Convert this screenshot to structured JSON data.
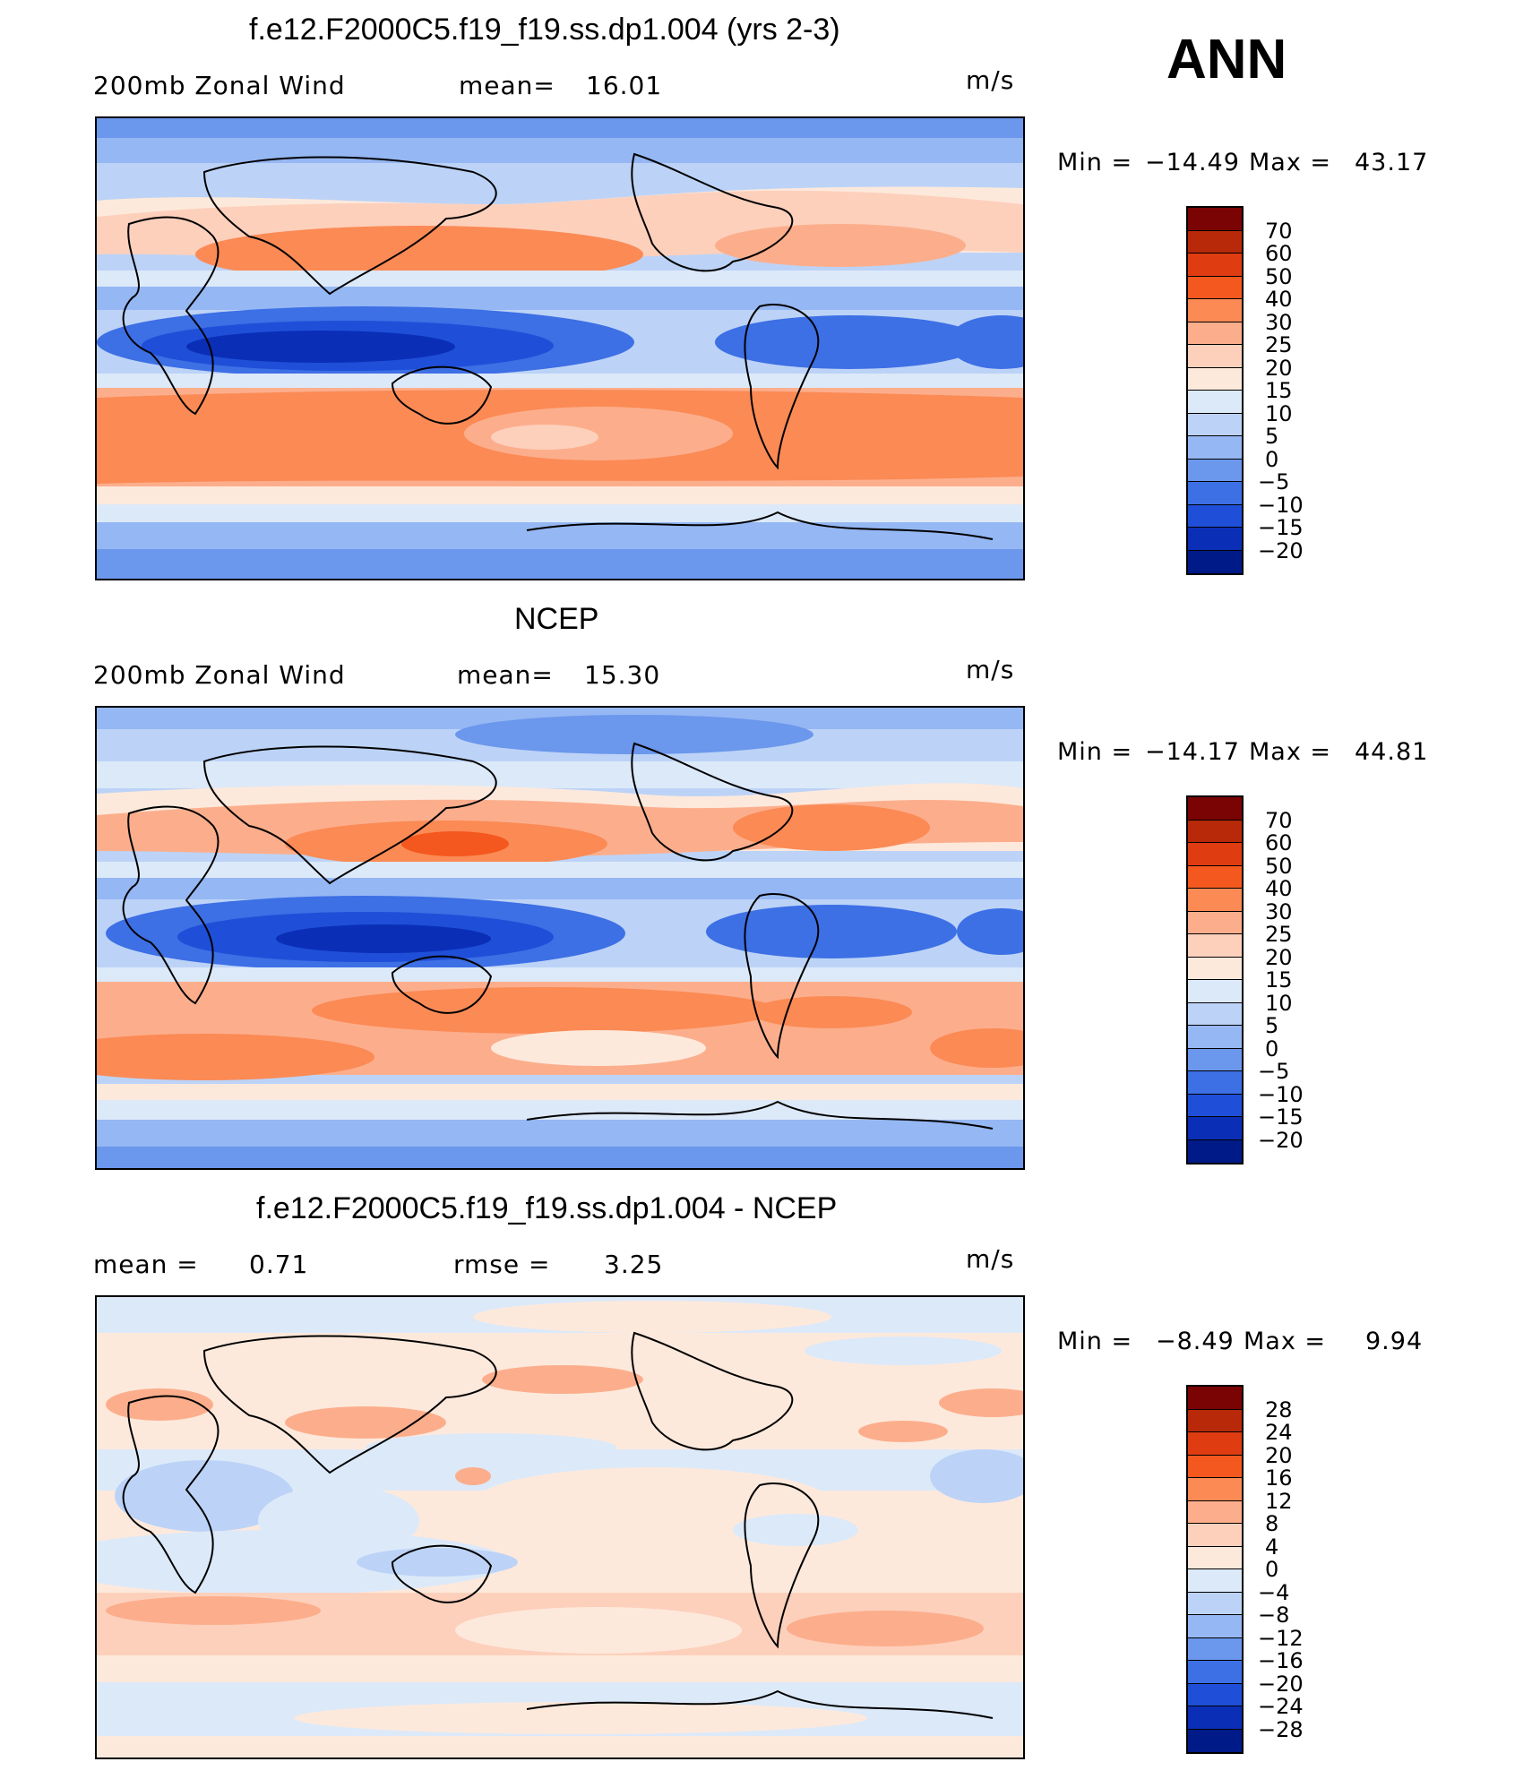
{
  "header": {
    "season": "ANN"
  },
  "chart_data": [
    {
      "type": "heatmap",
      "title": "f.e12.F2000C5.f19_f19.ss.dp1.004 (yrs 2-3)",
      "variable": "200mb Zonal Wind",
      "stat_label": "mean=",
      "stat_value": "16.01",
      "units": "m/s",
      "min_label": "Min =",
      "min_value": "−14.49",
      "max_label": "Max =",
      "max_value": "43.17",
      "colorbar": {
        "levels": [
          "70",
          "60",
          "50",
          "40",
          "30",
          "25",
          "20",
          "15",
          "10",
          "5",
          "0",
          "−5",
          "−10",
          "−15",
          "−20"
        ],
        "colors": [
          "#7a0403",
          "#b8290a",
          "#e03c12",
          "#f5581e",
          "#fb8a55",
          "#fcae8c",
          "#fdd0bc",
          "#fde9dc",
          "#dce9f9",
          "#bcd3f7",
          "#95b7f3",
          "#6b97ec",
          "#3d6fe5",
          "#1f4fd8",
          "#0a2fb6",
          "#001a87"
        ]
      }
    },
    {
      "type": "heatmap",
      "title": "NCEP",
      "variable": "200mb Zonal Wind",
      "stat_label": "mean=",
      "stat_value": "15.30",
      "units": "m/s",
      "min_label": "Min =",
      "min_value": "−14.17",
      "max_label": "Max =",
      "max_value": "44.81",
      "colorbar": {
        "levels": [
          "70",
          "60",
          "50",
          "40",
          "30",
          "25",
          "20",
          "15",
          "10",
          "5",
          "0",
          "−5",
          "−10",
          "−15",
          "−20"
        ],
        "colors": [
          "#7a0403",
          "#b8290a",
          "#e03c12",
          "#f5581e",
          "#fb8a55",
          "#fcae8c",
          "#fdd0bc",
          "#fde9dc",
          "#dce9f9",
          "#bcd3f7",
          "#95b7f3",
          "#6b97ec",
          "#3d6fe5",
          "#1f4fd8",
          "#0a2fb6",
          "#001a87"
        ]
      }
    },
    {
      "type": "heatmap",
      "title": "f.e12.F2000C5.f19_f19.ss.dp1.004 - NCEP",
      "mean_label": "mean =",
      "mean_value": "0.71",
      "rmse_label": "rmse =",
      "rmse_value": "3.25",
      "units": "m/s",
      "min_label": "Min =",
      "min_value": "−8.49",
      "max_label": "Max =",
      "max_value": "9.94",
      "colorbar": {
        "levels": [
          "28",
          "24",
          "20",
          "16",
          "12",
          "8",
          "4",
          "0",
          "−4",
          "−8",
          "−12",
          "−16",
          "−20",
          "−24",
          "−28"
        ],
        "colors": [
          "#7a0403",
          "#b8290a",
          "#e03c12",
          "#f5581e",
          "#fb8a55",
          "#fcae8c",
          "#fdd0bc",
          "#fde9dc",
          "#dce9f9",
          "#bcd3f7",
          "#95b7f3",
          "#6b97ec",
          "#3d6fe5",
          "#1f4fd8",
          "#0a2fb6",
          "#001a87"
        ]
      }
    }
  ]
}
